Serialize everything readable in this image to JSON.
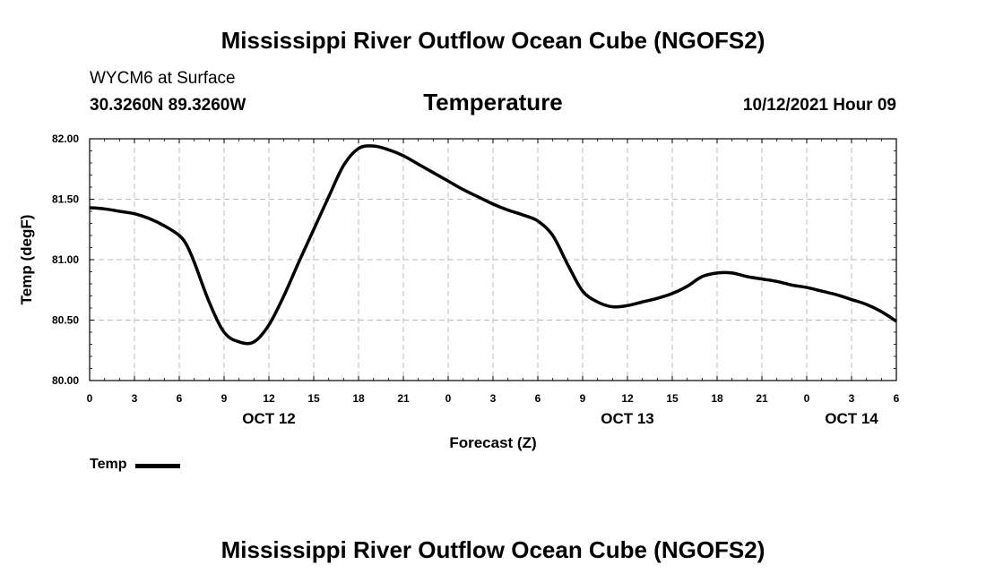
{
  "header": {
    "title": "Mississippi River Outflow Ocean Cube (NGOFS2)",
    "station": "WYCM6 at Surface",
    "coords": "30.3260N  89.3260W",
    "variable": "Temperature",
    "datetime": "10/12/2021 Hour 09"
  },
  "footer": {
    "title": "Mississippi River Outflow Ocean Cube (NGOFS2)"
  },
  "legend": {
    "label": "Temp"
  },
  "chart_data": {
    "type": "line",
    "title": "Temperature",
    "xlabel": "Forecast (Z)",
    "ylabel": "Temp (degF)",
    "xlim": [
      0,
      54
    ],
    "ylim": [
      80.0,
      82.0
    ],
    "grid": true,
    "y_ticks": [
      "80.00",
      "80.50",
      "81.00",
      "81.50",
      "82.00"
    ],
    "x_tick_labels": [
      "0",
      "3",
      "6",
      "9",
      "12",
      "15",
      "18",
      "21",
      "0",
      "3",
      "6",
      "9",
      "12",
      "15",
      "18",
      "21",
      "0",
      "3",
      "6"
    ],
    "day_labels": [
      {
        "label": "OCT 12",
        "hour": 12
      },
      {
        "label": "OCT 13",
        "hour": 36
      },
      {
        "label": "OCT 14",
        "hour": 51
      }
    ],
    "series": [
      {
        "name": "Temp",
        "color": "#000000",
        "x": [
          0,
          1,
          2,
          3,
          4,
          5,
          6,
          6.5,
          7,
          8,
          9,
          10,
          11,
          12,
          13,
          14,
          15,
          16,
          17,
          18,
          19,
          20,
          21,
          22,
          23,
          24,
          25,
          26,
          27,
          28,
          29,
          30,
          31,
          32,
          33,
          34,
          35,
          36,
          37,
          38,
          39,
          40,
          41,
          42,
          43,
          44,
          45,
          46,
          47,
          48,
          49,
          50,
          51,
          52,
          53,
          54
        ],
        "y": [
          81.43,
          81.42,
          81.4,
          81.38,
          81.34,
          81.28,
          81.2,
          81.12,
          80.98,
          80.65,
          80.4,
          80.32,
          80.32,
          80.46,
          80.7,
          80.98,
          81.25,
          81.52,
          81.78,
          81.92,
          81.94,
          81.91,
          81.86,
          81.79,
          81.72,
          81.65,
          81.58,
          81.52,
          81.46,
          81.41,
          81.37,
          81.32,
          81.2,
          80.96,
          80.74,
          80.65,
          80.61,
          80.62,
          80.65,
          80.68,
          80.72,
          80.78,
          80.86,
          80.89,
          80.89,
          80.86,
          80.84,
          80.82,
          80.79,
          80.77,
          80.74,
          80.71,
          80.67,
          80.63,
          80.57,
          80.49
        ]
      }
    ]
  }
}
